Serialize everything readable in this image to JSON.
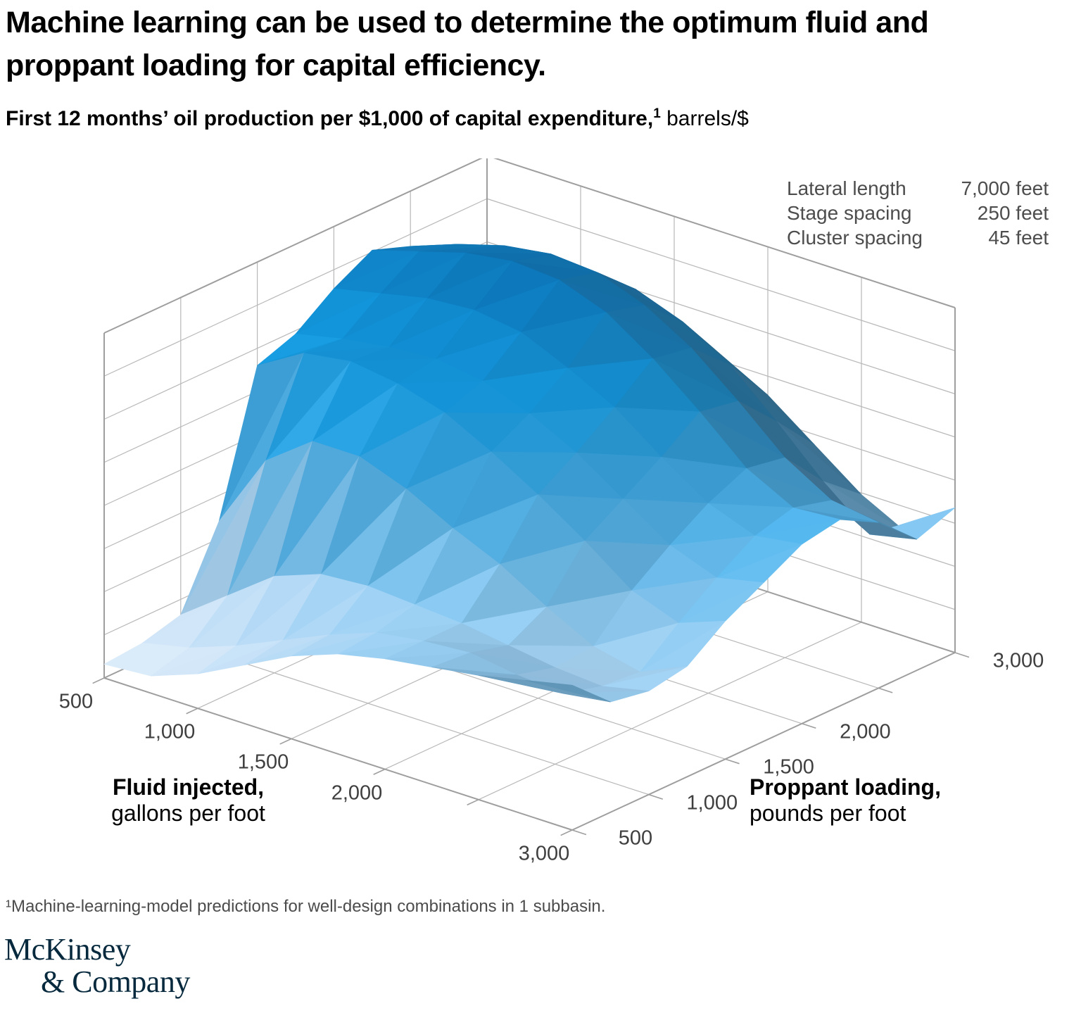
{
  "page": {
    "title": "Machine learning can be used to determine the optimum fluid and proppant loading for capital efficiency.",
    "subtitle": {
      "bold": "First 12 months’ oil production per $1,000 of capital expenditure,",
      "superscript": "1",
      "unit": " barrels/$"
    },
    "footnote": "¹Machine-learning-model predictions for well-design combinations in 1 subbasin.",
    "logo": {
      "line1": "McKinsey",
      "line2": "& Company"
    }
  },
  "legend": {
    "rows": [
      {
        "label": "Lateral length",
        "value": "7,000 feet"
      },
      {
        "label": "Stage spacing",
        "value": "250 feet"
      },
      {
        "label": "Cluster spacing",
        "value": "45 feet"
      }
    ]
  },
  "chart_data": {
    "type": "surface",
    "title": "First 12 months’ oil production per $1,000 of capital expenditure, barrels/$",
    "fluid_axis": {
      "title_bold": "Fluid injected,",
      "title_regular": "gallons per foot",
      "range": [
        500,
        3000
      ],
      "ticks": [
        {
          "value": 500,
          "label": "500"
        },
        {
          "value": 1000,
          "label": "1,000"
        },
        {
          "value": 1500,
          "label": "1,500"
        },
        {
          "value": 2000,
          "label": "2,000"
        },
        {
          "value": 2500,
          "label": ""
        },
        {
          "value": 3000,
          "label": "3,000"
        }
      ]
    },
    "proppant_axis": {
      "title_bold": "Proppant loading,",
      "title_regular": "pounds per foot",
      "range": [
        500,
        3000
      ],
      "ticks": [
        {
          "value": 500,
          "label": "500"
        },
        {
          "value": 1000,
          "label": "1,000"
        },
        {
          "value": 1500,
          "label": "1,500"
        },
        {
          "value": 2000,
          "label": "2,000"
        },
        {
          "value": 2500,
          "label": ""
        },
        {
          "value": 3000,
          "label": "3,000"
        }
      ]
    },
    "z_axis": {
      "tick_labels_visible": false,
      "gridline_rows": 8
    },
    "surface": {
      "fluid_values": [
        500,
        750,
        1000,
        1250,
        1500,
        1750,
        2000,
        2250,
        2500,
        2750,
        3000
      ],
      "proppant_values": [
        500,
        750,
        1000,
        1250,
        1500,
        1750,
        2000,
        2250,
        2500,
        2750,
        3000
      ],
      "rows_axis": "proppant",
      "z_normalized": [
        [
          0.04,
          0.05,
          0.1,
          0.17,
          0.24,
          0.29,
          0.32,
          0.34,
          0.36,
          0.39,
          0.42
        ],
        [
          0.05,
          0.08,
          0.13,
          0.19,
          0.25,
          0.3,
          0.32,
          0.33,
          0.31,
          0.3,
          0.32
        ],
        [
          0.08,
          0.18,
          0.28,
          0.33,
          0.34,
          0.33,
          0.32,
          0.3,
          0.28,
          0.27,
          0.3
        ],
        [
          0.3,
          0.52,
          0.62,
          0.62,
          0.57,
          0.5,
          0.44,
          0.36,
          0.29,
          0.26,
          0.32
        ],
        [
          0.7,
          0.78,
          0.8,
          0.78,
          0.74,
          0.67,
          0.59,
          0.5,
          0.4,
          0.35,
          0.4
        ],
        [
          0.74,
          0.77,
          0.79,
          0.8,
          0.78,
          0.73,
          0.66,
          0.57,
          0.48,
          0.43,
          0.46
        ],
        [
          0.82,
          0.85,
          0.88,
          0.89,
          0.87,
          0.81,
          0.74,
          0.64,
          0.55,
          0.5,
          0.52
        ],
        [
          0.88,
          0.92,
          0.96,
          0.98,
          0.97,
          0.92,
          0.83,
          0.72,
          0.6,
          0.53,
          0.54
        ],
        [
          0.84,
          0.89,
          0.93,
          0.95,
          0.94,
          0.89,
          0.81,
          0.7,
          0.58,
          0.5,
          0.48
        ],
        [
          0.74,
          0.79,
          0.83,
          0.85,
          0.84,
          0.79,
          0.71,
          0.59,
          0.46,
          0.35,
          0.38
        ],
        [
          0.6,
          0.65,
          0.69,
          0.71,
          0.69,
          0.64,
          0.57,
          0.47,
          0.37,
          0.3,
          0.42
        ]
      ]
    },
    "colors": {
      "colormap": [
        [
          0.0,
          "#e6f0fb"
        ],
        [
          0.25,
          "#b3d9f6"
        ],
        [
          0.5,
          "#5bbaf0"
        ],
        [
          0.75,
          "#149be2"
        ],
        [
          1.0,
          "#0b6fb0"
        ]
      ],
      "shadow": "#27485e",
      "gridline": "#b8b8b8",
      "box_edge": "#9e9e9e"
    }
  }
}
